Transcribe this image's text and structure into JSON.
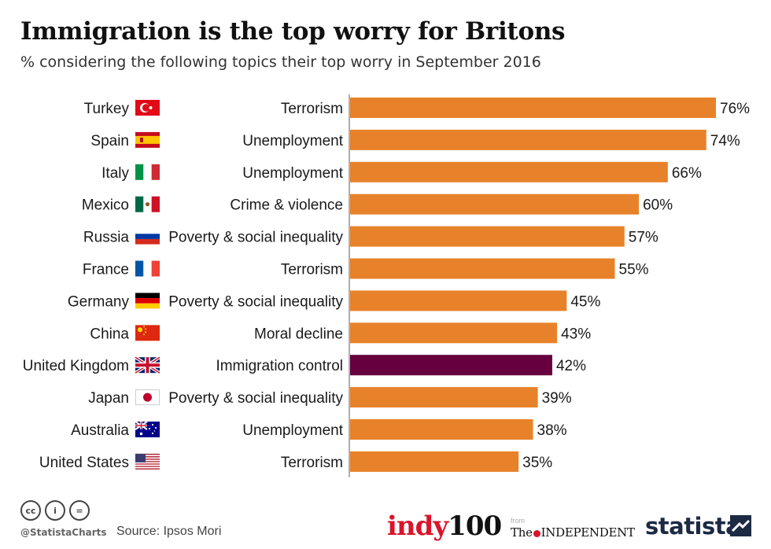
{
  "colors": {
    "bar": "#E8822A",
    "highlight": "#66003F",
    "axis": "#7a7a7a"
  },
  "chart_data": {
    "type": "bar",
    "orientation": "horizontal",
    "title": "Immigration is the top worry for Britons",
    "subtitle": "% considering the following topics their top worry in September 2016",
    "value_suffix": "%",
    "xlim": [
      0,
      76
    ],
    "highlight_index": 8,
    "categories": [
      "Turkey",
      "Spain",
      "Italy",
      "Mexico",
      "Russia",
      "France",
      "Germany",
      "China",
      "United Kingdom",
      "Japan",
      "Australia",
      "United States"
    ],
    "topics": [
      "Terrorism",
      "Unemployment",
      "Unemployment",
      "Crime & violence",
      "Poverty & social inequality",
      "Terrorism",
      "Poverty & social inequality",
      "Moral decline",
      "Immigration control",
      "Poverty & social inequality",
      "Unemployment",
      "Terrorism"
    ],
    "flags": [
      "turkey-flag-icon",
      "spain-flag-icon",
      "italy-flag-icon",
      "mexico-flag-icon",
      "russia-flag-icon",
      "france-flag-icon",
      "germany-flag-icon",
      "china-flag-icon",
      "uk-flag-icon",
      "japan-flag-icon",
      "australia-flag-icon",
      "usa-flag-icon"
    ],
    "values": [
      76,
      74,
      66,
      60,
      57,
      55,
      45,
      43,
      42,
      39,
      38,
      35
    ]
  },
  "footer": {
    "cc_icons": [
      "cc",
      "i",
      "="
    ],
    "handle": "@StatistaCharts",
    "source": "Source: Ipsos Mori",
    "indy_red": "indy",
    "indy_black": "100",
    "from": "from",
    "independent_pre": "The",
    "independent_post": "INDEPENDENT",
    "statista": "statista"
  }
}
